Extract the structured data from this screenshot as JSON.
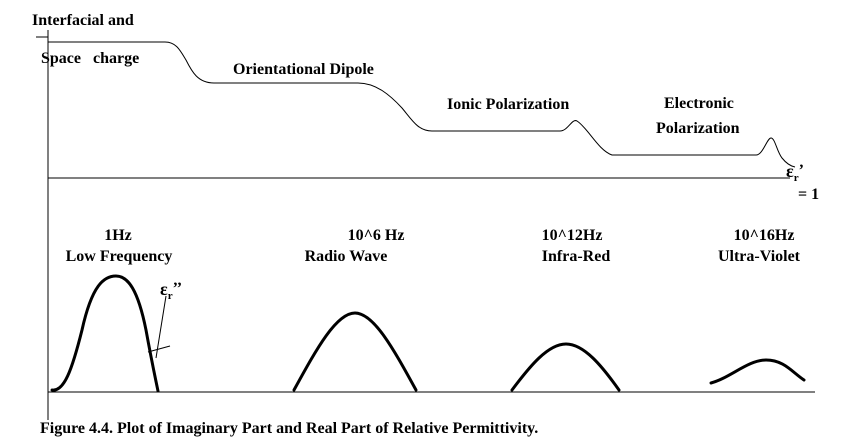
{
  "labels": {
    "interfacial_line1": "Interfacial and",
    "interfacial_line2": "Space   charge",
    "orientational": "Orientational Dipole",
    "ionic": "Ionic Polarization",
    "electronic_line1": "Electronic",
    "electronic_line2": "Polarization",
    "er_prime_symbol": "ε",
    "er_prime_sub": "r",
    "er_prime_mark": "’",
    "equals_one": "= 1",
    "er_double_symbol": "ε",
    "er_double_sub": "r",
    "er_double_mark": "’’"
  },
  "bands": [
    {
      "freq": "1Hz",
      "name": "Low Frequency"
    },
    {
      "freq": "10^6 Hz",
      "name": "Radio Wave"
    },
    {
      "freq": "10^12Hz",
      "name": "Infra-Red"
    },
    {
      "freq": "10^16Hz",
      "name": "Ultra-Violet"
    }
  ],
  "caption": "Figure 4.4. Plot of Imaginary Part and Real Part of Relative Permittivity."
}
